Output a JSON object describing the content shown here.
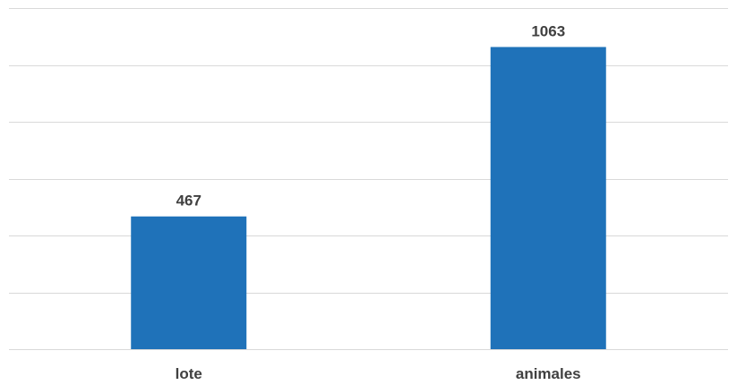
{
  "chart_data": {
    "type": "bar",
    "categories": [
      "lote",
      "animales"
    ],
    "values": [
      467,
      1063
    ],
    "data_labels": [
      "467",
      "1063"
    ],
    "bar_color": "#1f72b9",
    "ylim": [
      0,
      1200
    ],
    "y_major_step": 200,
    "grid": true,
    "legend": "none",
    "title": "",
    "xlabel": "",
    "ylabel": ""
  }
}
